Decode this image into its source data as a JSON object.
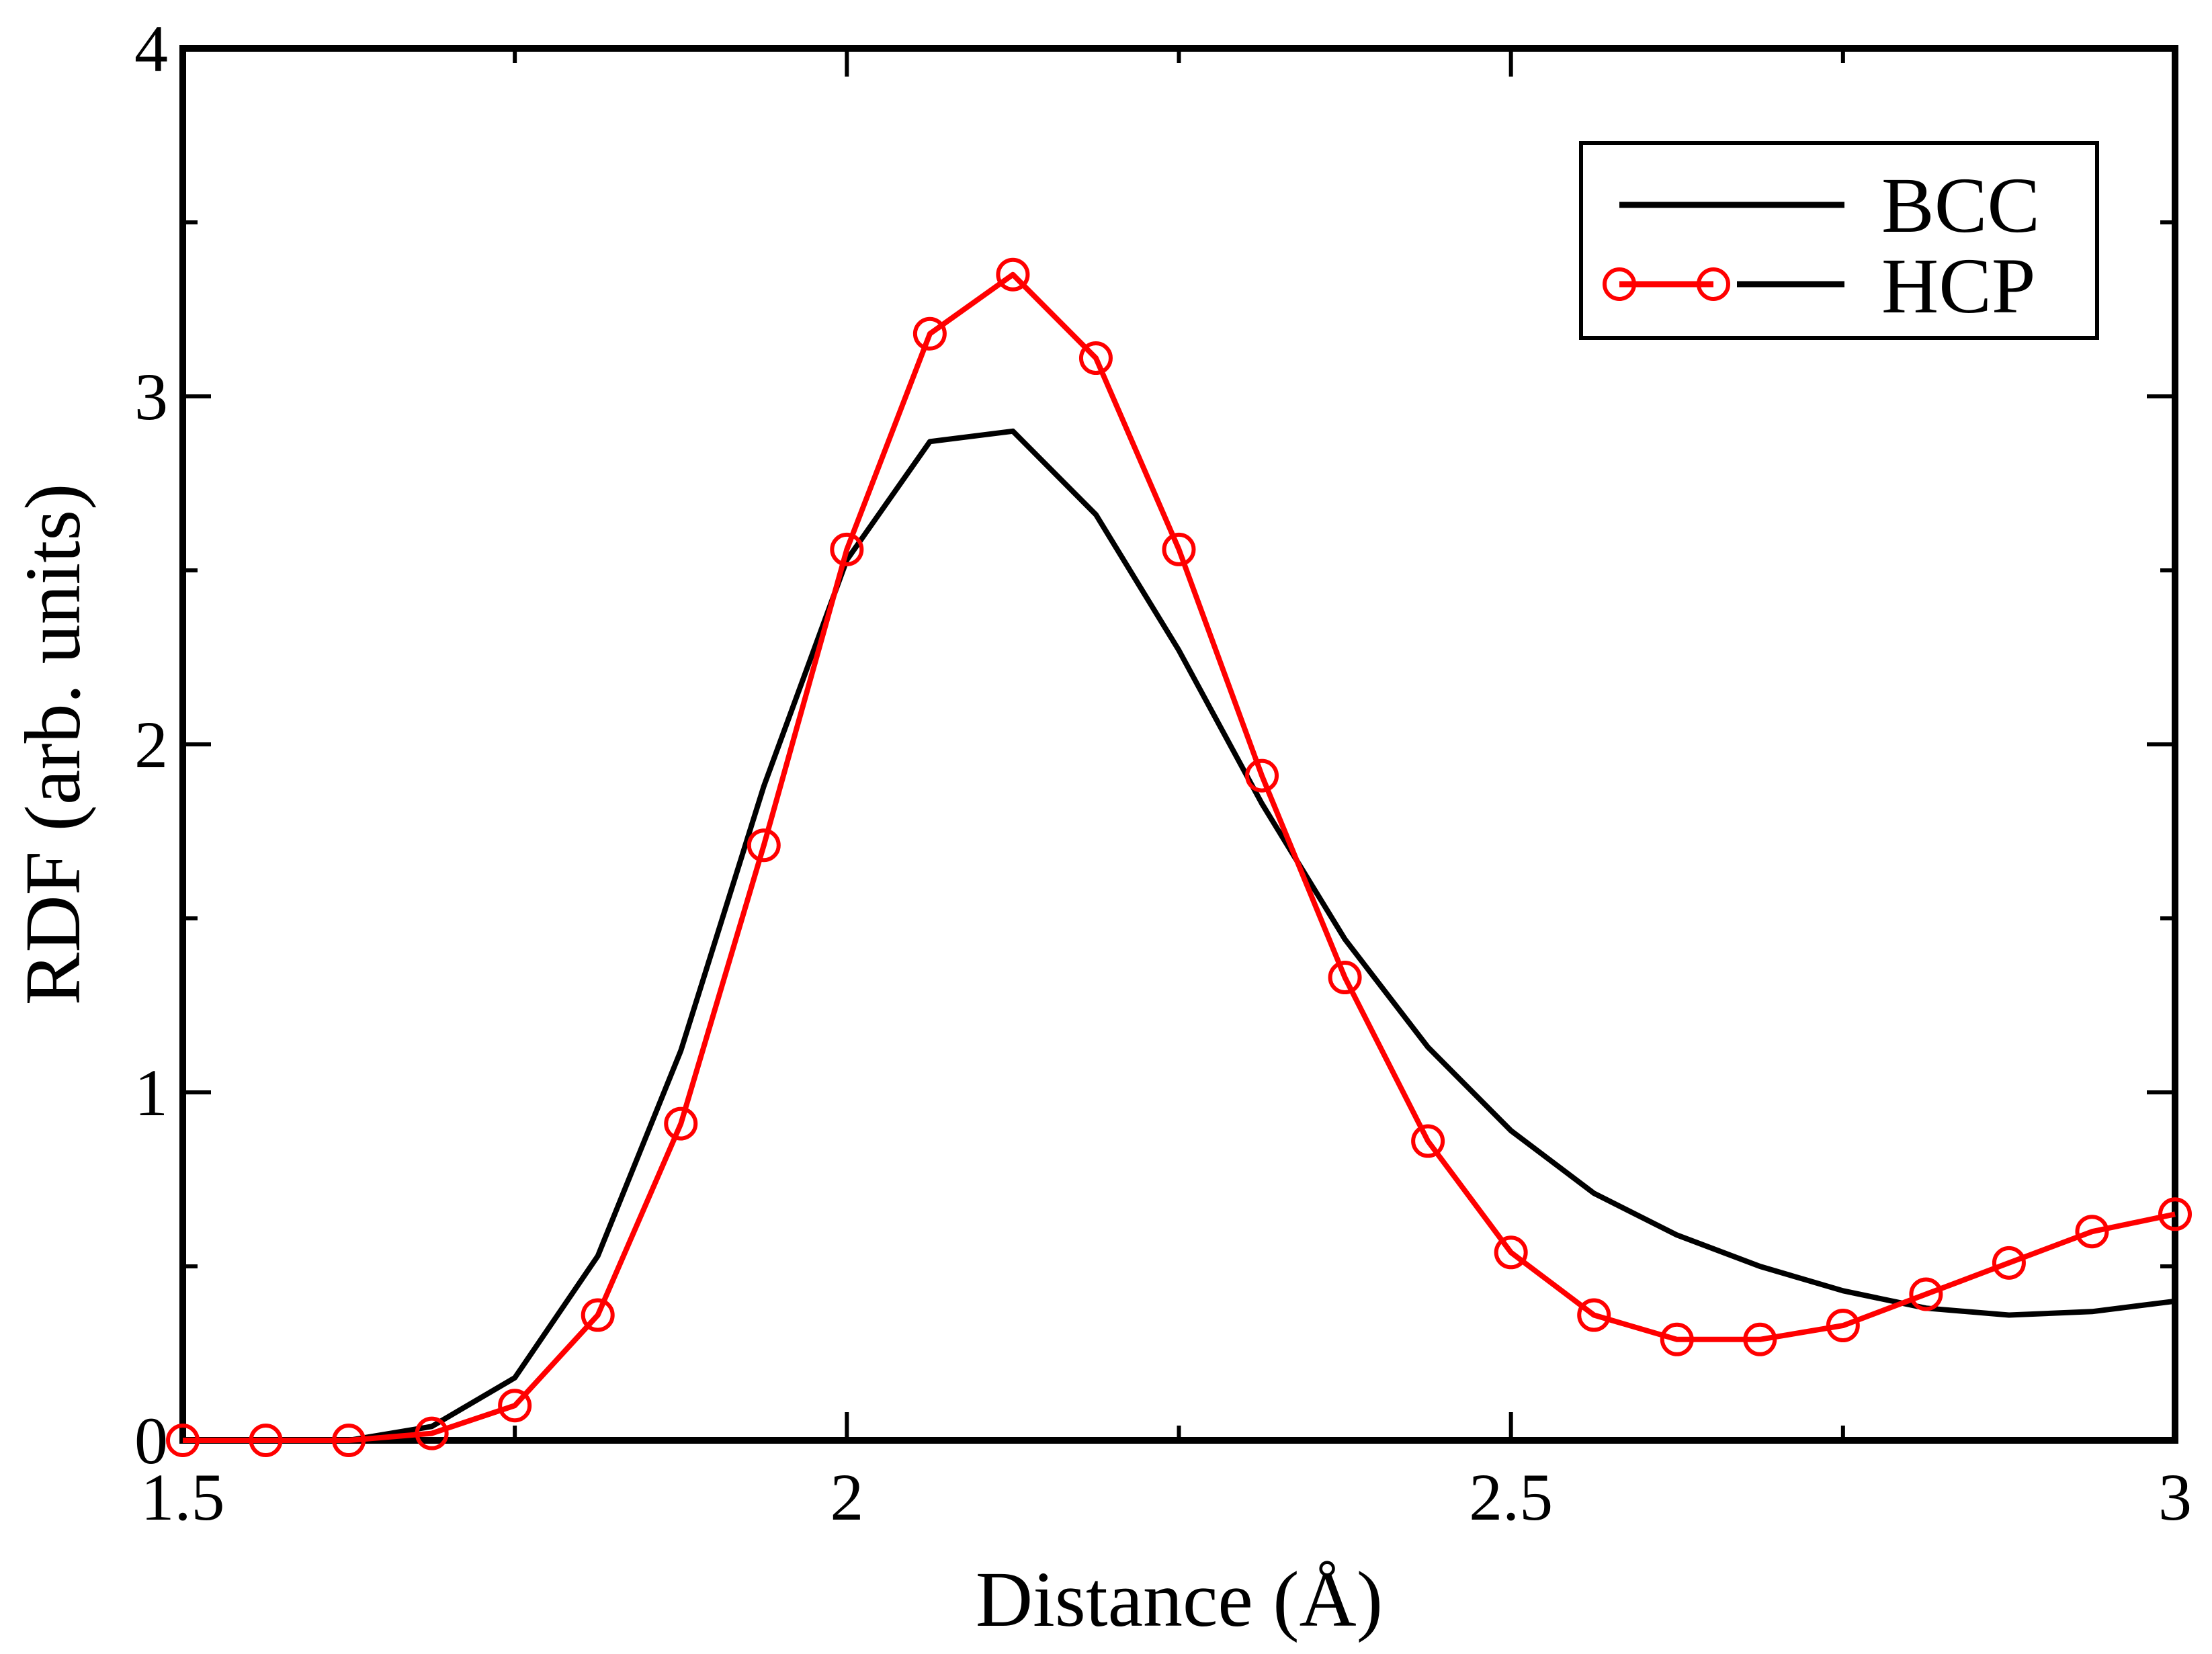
{
  "chart_data": {
    "type": "line",
    "title": "",
    "xlabel": "Distance (Å)",
    "ylabel": "RDF (arb. units)",
    "xlim": [
      1.5,
      3.0
    ],
    "ylim": [
      0,
      4
    ],
    "x_ticks": [
      1.5,
      2.0,
      2.5,
      3.0
    ],
    "x_tick_labels": [
      "1.5",
      "2",
      "2.5",
      "3"
    ],
    "y_ticks": [
      0,
      1,
      2,
      3,
      4
    ],
    "y_tick_labels": [
      "0",
      "1",
      "2",
      "3",
      "4"
    ],
    "grid": false,
    "legend_position": "top-right",
    "series": [
      {
        "name": "BCC",
        "color": "#000000",
        "marker": "none",
        "x": [
          1.5,
          1.5625,
          1.625,
          1.6875,
          1.75,
          1.8125,
          1.875,
          1.9375,
          2.0,
          2.0625,
          2.125,
          2.1875,
          2.25,
          2.3125,
          2.375,
          2.4375,
          2.5,
          2.5625,
          2.625,
          2.6875,
          2.75,
          2.8125,
          2.875,
          2.9375,
          3.0
        ],
        "values": [
          0.0,
          0.0,
          0.0,
          0.04,
          0.18,
          0.53,
          1.12,
          1.88,
          2.53,
          2.87,
          2.9,
          2.66,
          2.27,
          1.83,
          1.44,
          1.13,
          0.89,
          0.71,
          0.59,
          0.5,
          0.43,
          0.38,
          0.36,
          0.37,
          0.4
        ]
      },
      {
        "name": "HCP",
        "color": "#ff0000",
        "marker": "circle",
        "x": [
          1.5,
          1.5625,
          1.625,
          1.6875,
          1.75,
          1.8125,
          1.875,
          1.9375,
          2.0,
          2.0625,
          2.125,
          2.1875,
          2.25,
          2.3125,
          2.375,
          2.4375,
          2.5,
          2.5625,
          2.625,
          2.6875,
          2.75,
          2.8125,
          2.875,
          2.9375,
          3.0
        ],
        "values": [
          0.0,
          0.0,
          0.0,
          0.02,
          0.1,
          0.36,
          0.91,
          1.71,
          2.56,
          3.18,
          3.35,
          3.11,
          2.56,
          1.91,
          1.33,
          0.86,
          0.54,
          0.36,
          0.29,
          0.29,
          0.33,
          0.42,
          0.51,
          0.6,
          0.65
        ]
      }
    ]
  }
}
